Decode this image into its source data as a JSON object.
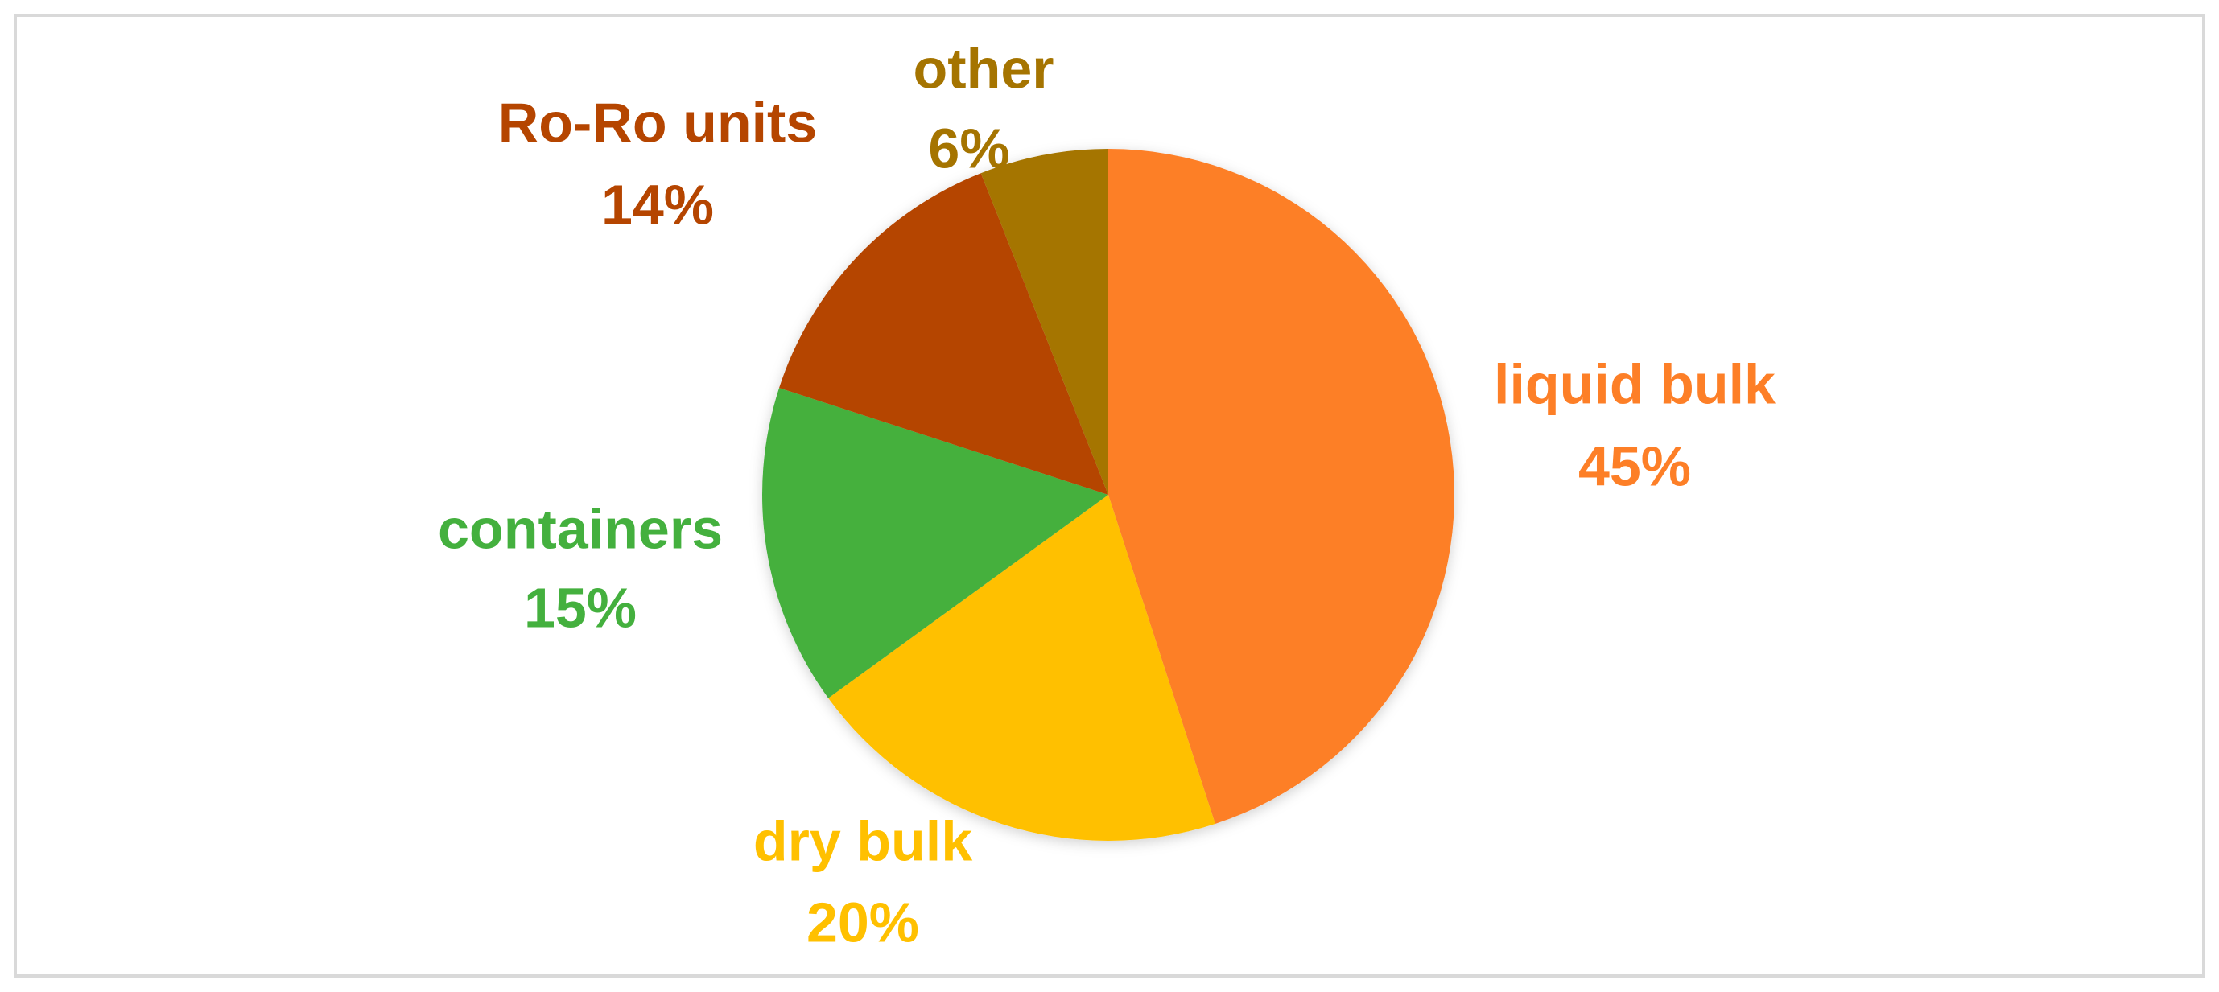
{
  "chart_data": {
    "type": "pie",
    "categories": [
      "liquid bulk",
      "dry bulk",
      "containers",
      "Ro-Ro units",
      "other"
    ],
    "values": [
      45,
      20,
      15,
      14,
      6
    ],
    "value_labels": [
      "45%",
      "20%",
      "15%",
      "14%",
      "6%"
    ],
    "colors": [
      "#fd7f27",
      "#ffc000",
      "#44b03e",
      "#b54500",
      "#a57400"
    ]
  }
}
